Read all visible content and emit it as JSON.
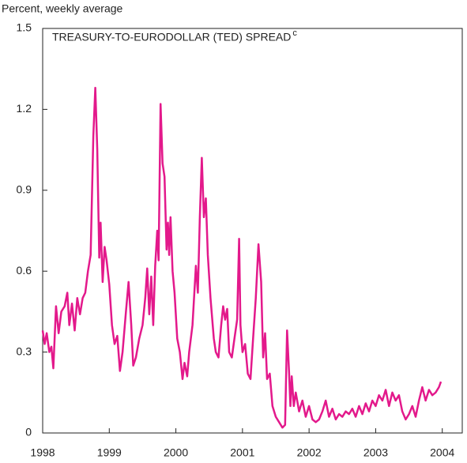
{
  "chart_data": {
    "type": "line",
    "title": "TREASURY-TO-EURODOLLAR (TED) SPREAD",
    "title_superscript": "c",
    "y_label": "Percent, weekly average",
    "x": [
      1998.0,
      1998.03,
      1998.06,
      1998.1,
      1998.13,
      1998.16,
      1998.2,
      1998.24,
      1998.28,
      1998.33,
      1998.37,
      1998.4,
      1998.44,
      1998.48,
      1998.52,
      1998.56,
      1998.6,
      1998.64,
      1998.68,
      1998.72,
      1998.76,
      1998.79,
      1998.82,
      1998.85,
      1998.87,
      1998.9,
      1998.93,
      1998.96,
      1999.0,
      1999.04,
      1999.08,
      1999.12,
      1999.16,
      1999.2,
      1999.25,
      1999.29,
      1999.33,
      1999.36,
      1999.4,
      1999.45,
      1999.5,
      1999.54,
      1999.57,
      1999.6,
      1999.63,
      1999.66,
      1999.69,
      1999.72,
      1999.74,
      1999.77,
      1999.8,
      1999.83,
      1999.86,
      1999.88,
      1999.9,
      1999.92,
      1999.95,
      1999.98,
      2000.02,
      2000.06,
      2000.1,
      2000.13,
      2000.17,
      2000.2,
      2000.25,
      2000.3,
      2000.33,
      2000.36,
      2000.39,
      2000.42,
      2000.45,
      2000.48,
      2000.52,
      2000.57,
      2000.6,
      2000.64,
      2000.68,
      2000.71,
      2000.74,
      2000.77,
      2000.8,
      2000.84,
      2000.88,
      2000.92,
      2000.95,
      2000.97,
      2001.0,
      2001.04,
      2001.08,
      2001.12,
      2001.16,
      2001.2,
      2001.24,
      2001.28,
      2001.31,
      2001.34,
      2001.37,
      2001.41,
      2001.45,
      2001.5,
      2001.55,
      2001.6,
      2001.64,
      2001.67,
      2001.7,
      2001.72,
      2001.74,
      2001.77,
      2001.8,
      2001.85,
      2001.9,
      2001.95,
      2002.0,
      2002.05,
      2002.1,
      2002.15,
      2002.2,
      2002.25,
      2002.3,
      2002.35,
      2002.4,
      2002.45,
      2002.5,
      2002.55,
      2002.6,
      2002.65,
      2002.7,
      2002.75,
      2002.8,
      2002.85,
      2002.9,
      2002.95,
      2003.0,
      2003.05,
      2003.1,
      2003.15,
      2003.2,
      2003.25,
      2003.3,
      2003.35,
      2003.4,
      2003.45,
      2003.5,
      2003.55,
      2003.6,
      2003.65,
      2003.7,
      2003.75,
      2003.8,
      2003.85,
      2003.9,
      2003.95,
      2003.98
    ],
    "series": [
      {
        "color": "#e3198b",
        "values": [
          0.38,
          0.33,
          0.37,
          0.3,
          0.32,
          0.24,
          0.47,
          0.37,
          0.45,
          0.47,
          0.52,
          0.4,
          0.48,
          0.38,
          0.5,
          0.44,
          0.5,
          0.52,
          0.6,
          0.66,
          1.1,
          1.28,
          1.05,
          0.65,
          0.78,
          0.56,
          0.69,
          0.64,
          0.55,
          0.4,
          0.33,
          0.36,
          0.23,
          0.3,
          0.45,
          0.56,
          0.4,
          0.25,
          0.28,
          0.35,
          0.4,
          0.5,
          0.61,
          0.44,
          0.58,
          0.4,
          0.62,
          0.75,
          0.64,
          1.22,
          1.0,
          0.95,
          0.68,
          0.78,
          0.66,
          0.8,
          0.6,
          0.52,
          0.35,
          0.3,
          0.2,
          0.26,
          0.21,
          0.3,
          0.4,
          0.62,
          0.52,
          0.8,
          1.02,
          0.8,
          0.87,
          0.66,
          0.5,
          0.35,
          0.3,
          0.28,
          0.4,
          0.47,
          0.42,
          0.46,
          0.3,
          0.28,
          0.35,
          0.42,
          0.72,
          0.4,
          0.3,
          0.33,
          0.22,
          0.2,
          0.35,
          0.5,
          0.7,
          0.56,
          0.28,
          0.37,
          0.2,
          0.22,
          0.1,
          0.06,
          0.04,
          0.02,
          0.03,
          0.38,
          0.22,
          0.1,
          0.21,
          0.1,
          0.15,
          0.08,
          0.12,
          0.06,
          0.1,
          0.05,
          0.04,
          0.05,
          0.08,
          0.12,
          0.06,
          0.09,
          0.05,
          0.07,
          0.06,
          0.08,
          0.07,
          0.09,
          0.06,
          0.1,
          0.07,
          0.11,
          0.08,
          0.12,
          0.1,
          0.14,
          0.12,
          0.16,
          0.1,
          0.15,
          0.12,
          0.14,
          0.08,
          0.05,
          0.07,
          0.1,
          0.06,
          0.12,
          0.17,
          0.12,
          0.16,
          0.14,
          0.15,
          0.17,
          0.19
        ]
      }
    ],
    "xlim": [
      1998,
      2004.3
    ],
    "xticks": [
      1998,
      1999,
      2000,
      2001,
      2002,
      2003,
      2004
    ],
    "ylim": [
      0,
      1.5
    ],
    "yticks": [
      0,
      0.3,
      0.6,
      0.9,
      1.2,
      1.5
    ],
    "grid": false
  }
}
